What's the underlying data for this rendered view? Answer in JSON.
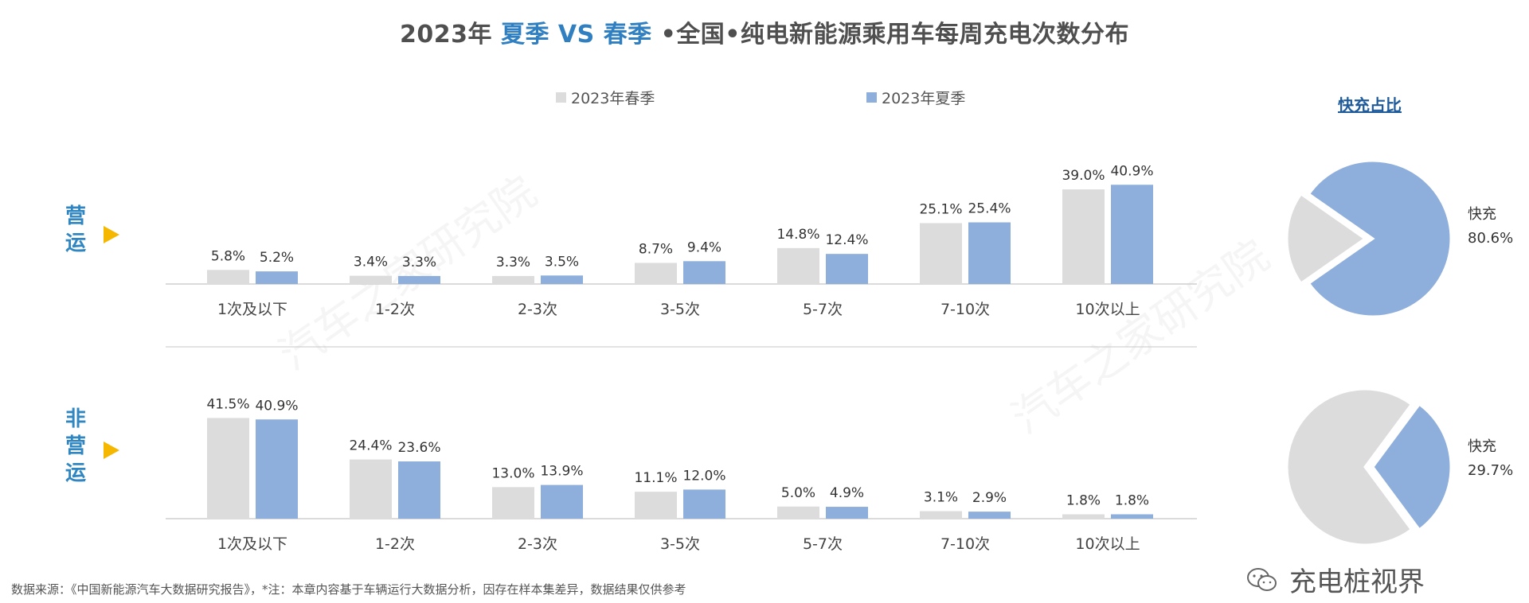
{
  "title": {
    "prefix": "2023年 ",
    "highlight1": "夏季",
    "vs": " VS ",
    "highlight2": "春季",
    "suffix": " •全国•纯电新能源乘用车每周充电次数分布"
  },
  "legend": [
    {
      "label": "2023年春季",
      "color": "#dcdcdc"
    },
    {
      "label": "2023年夏季",
      "color": "#8eaedb"
    }
  ],
  "pie_title": "快充占比",
  "sections": {
    "operating": "营运",
    "nonoperating": "非营运"
  },
  "watermark_text": "汽车之家研究院",
  "footer": "数据来源：《中国新能源汽车大数据研究报告》，*注：本章内容基于车辆运行大数据分析，因存在样本集差异，数据结果仅供参考",
  "brand": "充电桩视界",
  "chart_data": [
    {
      "type": "bar",
      "section": "营运",
      "categories": [
        "1次及以下",
        "1-2次",
        "2-3次",
        "3-5次",
        "5-7次",
        "7-10次",
        "10次以上"
      ],
      "series": [
        {
          "name": "2023年春季",
          "values": [
            5.8,
            3.4,
            3.3,
            8.7,
            14.8,
            25.1,
            39.0
          ],
          "labels": [
            "5.8%",
            "3.4%",
            "3.3%",
            "8.7%",
            "14.8%",
            "25.1%",
            "39.0%"
          ],
          "color": "#dcdcdc"
        },
        {
          "name": "2023年夏季",
          "values": [
            5.2,
            3.3,
            3.5,
            9.4,
            12.4,
            25.4,
            40.9
          ],
          "labels": [
            "5.2%",
            "3.3%",
            "3.5%",
            "9.4%",
            "12.4%",
            "25.4%",
            "40.9%"
          ],
          "color": "#8eaedb"
        }
      ]
    },
    {
      "type": "bar",
      "section": "非营运",
      "categories": [
        "1次及以下",
        "1-2次",
        "2-3次",
        "3-5次",
        "5-7次",
        "7-10次",
        "10次以上"
      ],
      "series": [
        {
          "name": "2023年春季",
          "values": [
            41.5,
            24.4,
            13.0,
            11.1,
            5.0,
            3.1,
            1.8
          ],
          "labels": [
            "41.5%",
            "24.4%",
            "13.0%",
            "11.1%",
            "5.0%",
            "3.1%",
            "1.8%"
          ],
          "color": "#dcdcdc"
        },
        {
          "name": "2023年夏季",
          "values": [
            40.9,
            23.6,
            13.9,
            12.0,
            4.9,
            2.9,
            1.8
          ],
          "labels": [
            "40.9%",
            "23.6%",
            "13.9%",
            "12.0%",
            "4.9%",
            "2.9%",
            "1.8%"
          ],
          "color": "#8eaedb"
        }
      ]
    },
    {
      "type": "pie",
      "section": "营运",
      "slices": [
        {
          "name": "快充",
          "value": 80.6,
          "label": "80.6%",
          "color": "#8eaedb"
        },
        {
          "name": "",
          "value": 19.4,
          "color": "#dcdcdc"
        }
      ]
    },
    {
      "type": "pie",
      "section": "非营运",
      "slices": [
        {
          "name": "快充",
          "value": 29.7,
          "label": "29.7%",
          "color": "#8eaedb"
        },
        {
          "name": "",
          "value": 70.3,
          "color": "#dcdcdc"
        }
      ]
    }
  ]
}
